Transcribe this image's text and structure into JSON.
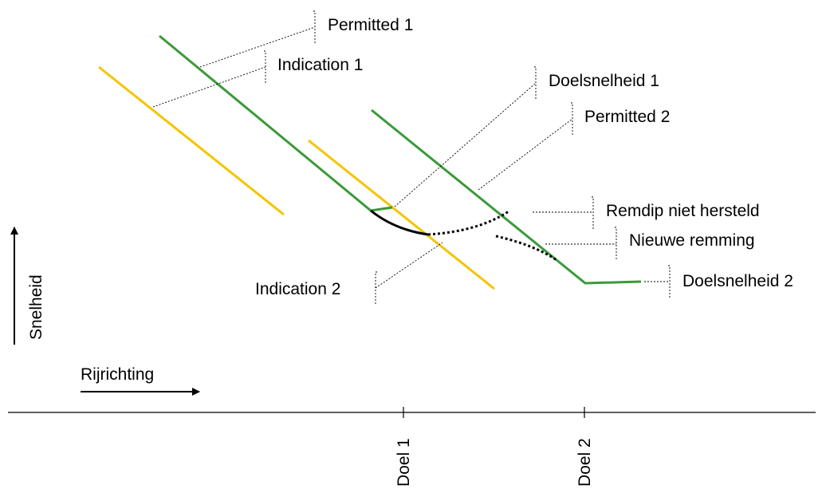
{
  "colors": {
    "permitted": "#3a9a3a",
    "indication": "#f5c400",
    "braking": "#000000"
  },
  "axes": {
    "x_label": "Rijrichting",
    "y_label": "Snelheid",
    "ticks": [
      "Doel 1",
      "Doel 2"
    ]
  },
  "labels": {
    "permitted_1": "Permitted 1",
    "indication_1": "Indication 1",
    "doelsnelheid_1": "Doelsnelheid 1",
    "permitted_2": "Permitted 2",
    "remdip": "Remdip niet hersteld",
    "nieuwe_remming": "Nieuwe remming",
    "indication_2": "Indication 2",
    "doelsnelheid_2": "Doelsnelheid 2"
  }
}
